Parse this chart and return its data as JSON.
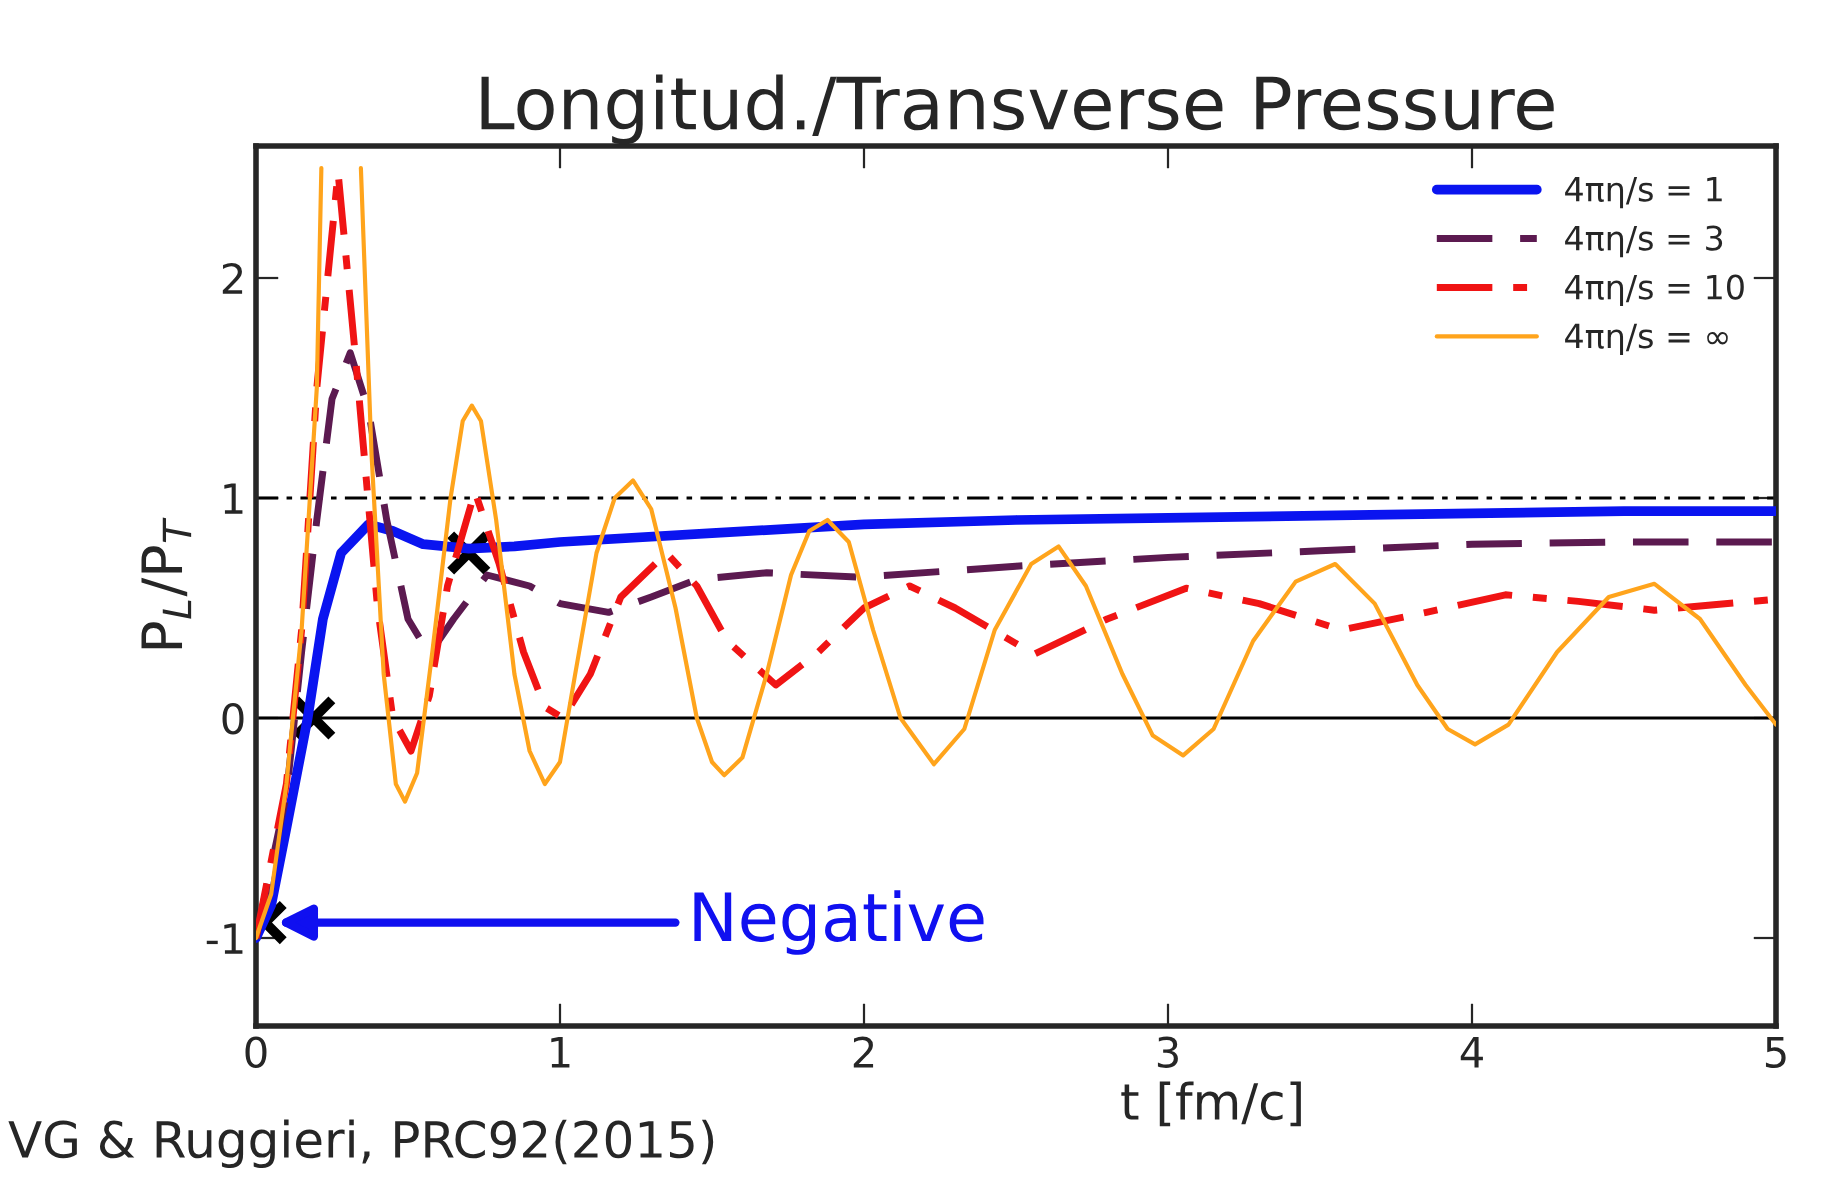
{
  "chart_data": {
    "type": "line",
    "title": "Longitud./Transverse Pressure",
    "xlabel": "t [fm/c]",
    "ylabel": "P$_{L}$/P$_{T}$",
    "xlim": [
      0,
      5
    ],
    "xticks": [
      0,
      1,
      2,
      3,
      4,
      5
    ],
    "ylim": [
      -1.4,
      2.6
    ],
    "yticks": [
      -1,
      0,
      1,
      2
    ],
    "grid": false,
    "legend": "top right",
    "series": [
      {
        "name": "4πη/s = 1",
        "color": "#0a14f0",
        "line_style": "solid",
        "x": [
          0,
          0.05,
          0.1,
          0.17,
          0.22,
          0.28,
          0.37,
          0.45,
          0.55,
          0.7,
          0.85,
          1.0,
          1.5,
          2.0,
          2.5,
          3.0,
          3.5,
          4.0,
          4.5,
          5.0
        ],
        "values": [
          -1.0,
          -0.85,
          -0.5,
          0.0,
          0.45,
          0.75,
          0.88,
          0.85,
          0.79,
          0.77,
          0.78,
          0.8,
          0.84,
          0.88,
          0.9,
          0.91,
          0.92,
          0.93,
          0.94,
          0.94
        ]
      },
      {
        "name": "4πη/s = 3",
        "color": "#5c1a50",
        "line_style": "dashed",
        "x": [
          0,
          0.1,
          0.15,
          0.2,
          0.25,
          0.31,
          0.37,
          0.43,
          0.5,
          0.57,
          0.65,
          0.76,
          0.9,
          1.0,
          1.16,
          1.3,
          1.45,
          1.68,
          1.99,
          2.5,
          3.0,
          3.5,
          4.0,
          4.5,
          5.0
        ],
        "values": [
          -1.0,
          -0.35,
          0.3,
          0.9,
          1.45,
          1.66,
          1.4,
          0.9,
          0.45,
          0.29,
          0.45,
          0.65,
          0.6,
          0.52,
          0.48,
          0.55,
          0.63,
          0.66,
          0.64,
          0.69,
          0.73,
          0.76,
          0.79,
          0.8,
          0.8
        ]
      },
      {
        "name": "4πη/s = 10",
        "color": "#f01414",
        "line_style": "dashdot",
        "x": [
          0,
          0.1,
          0.15,
          0.2,
          0.27,
          0.33,
          0.4,
          0.45,
          0.51,
          0.57,
          0.63,
          0.72,
          0.8,
          0.88,
          0.95,
          1.01,
          1.1,
          1.2,
          1.35,
          1.45,
          1.55,
          1.71,
          1.85,
          2.0,
          2.15,
          2.3,
          2.56,
          2.8,
          3.06,
          3.3,
          3.57,
          3.85,
          4.11,
          4.35,
          4.6,
          5.0
        ],
        "values": [
          -1.0,
          -0.3,
          0.4,
          1.5,
          2.48,
          1.6,
          0.5,
          0.0,
          -0.15,
          0.1,
          0.6,
          1.03,
          0.7,
          0.3,
          0.05,
          0.0,
          0.2,
          0.55,
          0.75,
          0.6,
          0.35,
          0.15,
          0.3,
          0.5,
          0.6,
          0.5,
          0.29,
          0.45,
          0.59,
          0.52,
          0.4,
          0.48,
          0.56,
          0.53,
          0.49,
          0.54
        ]
      },
      {
        "name": "4πη/s = ∞",
        "color": "#ffa41c",
        "line_style": "solid",
        "x": [
          0,
          0.05,
          0.1,
          0.15,
          0.2,
          0.215,
          0.28,
          0.345,
          0.38,
          0.42,
          0.46,
          0.49,
          0.53,
          0.58,
          0.64,
          0.68,
          0.71,
          0.74,
          0.79,
          0.85,
          0.9,
          0.95,
          1.0,
          1.05,
          1.12,
          1.18,
          1.24,
          1.3,
          1.38,
          1.45,
          1.5,
          1.54,
          1.6,
          1.68,
          1.76,
          1.82,
          1.88,
          1.95,
          2.03,
          2.12,
          2.23,
          2.33,
          2.43,
          2.55,
          2.64,
          2.73,
          2.85,
          2.95,
          3.05,
          3.15,
          3.28,
          3.42,
          3.55,
          3.68,
          3.82,
          3.92,
          4.01,
          4.12,
          4.28,
          4.45,
          4.6,
          4.75,
          4.9,
          5.0
        ],
        "values": [
          -1.0,
          -0.8,
          -0.3,
          0.4,
          1.5,
          2.5,
          null,
          2.5,
          1.2,
          0.2,
          -0.3,
          -0.38,
          -0.25,
          0.3,
          1.0,
          1.35,
          1.42,
          1.35,
          0.9,
          0.2,
          -0.15,
          -0.3,
          -0.2,
          0.2,
          0.75,
          1.0,
          1.08,
          0.95,
          0.5,
          0.0,
          -0.2,
          -0.26,
          -0.18,
          0.2,
          0.65,
          0.85,
          0.9,
          0.8,
          0.4,
          0.0,
          -0.21,
          -0.05,
          0.4,
          0.7,
          0.78,
          0.6,
          0.2,
          -0.08,
          -0.17,
          -0.05,
          0.35,
          0.62,
          0.7,
          0.52,
          0.15,
          -0.05,
          -0.12,
          -0.03,
          0.3,
          0.55,
          0.61,
          0.45,
          0.15,
          -0.03
        ]
      },
      {
        "type": "scatter",
        "marker": "cross",
        "color": "#000000",
        "x": [
          0.03,
          0.19,
          0.7
        ],
        "values": [
          -0.93,
          0.0,
          0.75
        ]
      }
    ],
    "ref_lines": [
      {
        "axis": "y",
        "value": 1,
        "color": "#000000",
        "line_style": "dashdot"
      },
      {
        "axis": "y",
        "value": 0,
        "color": "#000000",
        "line_style": "solid"
      }
    ],
    "annotations": [
      {
        "text": "Negative",
        "x": 0.05,
        "y": -0.93
      },
      "VG & Ruggieri, PRC92(2015)"
    ]
  }
}
